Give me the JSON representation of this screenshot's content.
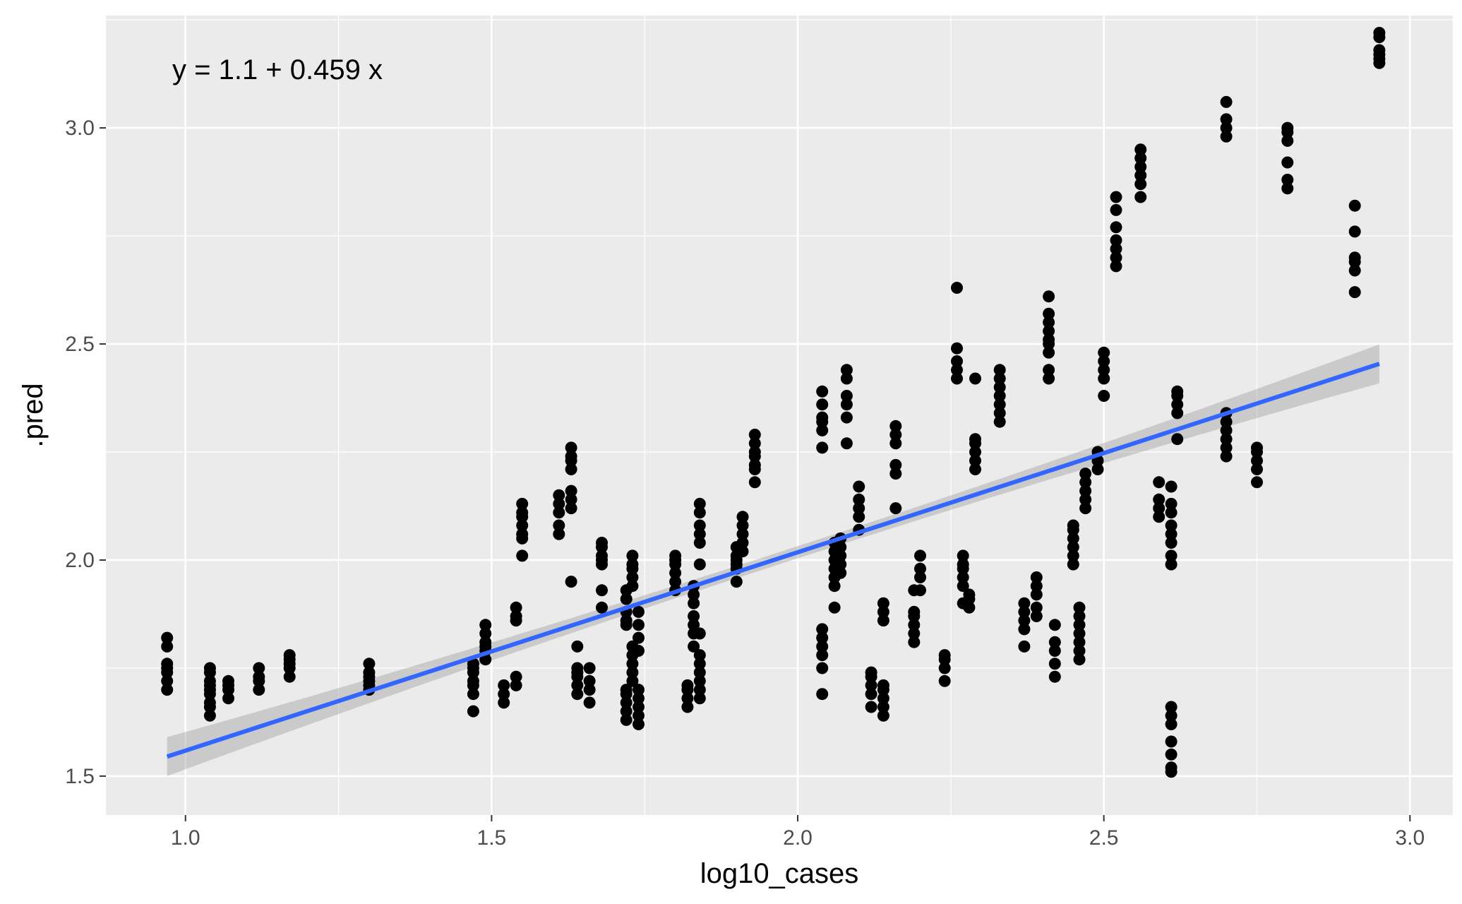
{
  "chart_data": {
    "type": "scatter",
    "title": "",
    "xlabel": "log10_cases",
    "ylabel": ".pred",
    "xlim": [
      0.87,
      3.07
    ],
    "ylim": [
      1.41,
      3.26
    ],
    "x_ticks": [
      1.0,
      1.5,
      2.0,
      2.5,
      3.0
    ],
    "x_tick_labels": [
      "1.0",
      "1.5",
      "2.0",
      "2.5",
      "3.0"
    ],
    "y_ticks": [
      1.5,
      2.0,
      2.5,
      3.0
    ],
    "y_tick_labels": [
      "1.5",
      "2.0",
      "2.5",
      "3.0"
    ],
    "grid": true,
    "annotation": "y = 1.1 + 0.459 x",
    "regression": {
      "intercept": 1.1,
      "slope": 0.459,
      "x_range": [
        0.97,
        2.95
      ],
      "se_band_halfwidth_ends": 0.045,
      "se_band_halfwidth_center": 0.014
    },
    "colors": {
      "panel": "#ebebeb",
      "grid_major": "#ffffff",
      "points": "#000000",
      "line": "#3366ff",
      "band": "#999999"
    },
    "groups": [
      {
        "x": 0.97,
        "y": [
          1.7,
          1.72,
          1.74,
          1.75,
          1.76,
          1.8,
          1.82
        ]
      },
      {
        "x": 1.04,
        "y": [
          1.64,
          1.66,
          1.67,
          1.69,
          1.7,
          1.71,
          1.72,
          1.74,
          1.75
        ]
      },
      {
        "x": 1.07,
        "y": [
          1.68,
          1.7,
          1.71,
          1.72
        ]
      },
      {
        "x": 1.12,
        "y": [
          1.7,
          1.72,
          1.73,
          1.75
        ]
      },
      {
        "x": 1.17,
        "y": [
          1.73,
          1.75,
          1.76,
          1.77,
          1.78
        ]
      },
      {
        "x": 1.3,
        "y": [
          1.7,
          1.71,
          1.72,
          1.73,
          1.74,
          1.76
        ]
      },
      {
        "x": 1.47,
        "y": [
          1.65,
          1.69,
          1.71,
          1.72,
          1.74,
          1.75,
          1.76
        ]
      },
      {
        "x": 1.49,
        "y": [
          1.77,
          1.79,
          1.8,
          1.81,
          1.83,
          1.85
        ]
      },
      {
        "x": 1.52,
        "y": [
          1.67,
          1.69,
          1.71
        ]
      },
      {
        "x": 1.54,
        "y": [
          1.71,
          1.73,
          1.86,
          1.87,
          1.89
        ]
      },
      {
        "x": 1.55,
        "y": [
          2.01,
          2.05,
          2.06,
          2.08,
          2.1,
          2.11,
          2.13
        ]
      },
      {
        "x": 1.61,
        "y": [
          2.06,
          2.08,
          2.11,
          2.13,
          2.15
        ]
      },
      {
        "x": 1.63,
        "y": [
          1.95,
          2.12,
          2.14,
          2.16,
          2.21,
          2.23,
          2.24,
          2.26
        ]
      },
      {
        "x": 1.64,
        "y": [
          1.69,
          1.71,
          1.73,
          1.74,
          1.75,
          1.8
        ]
      },
      {
        "x": 1.66,
        "y": [
          1.67,
          1.7,
          1.72,
          1.75
        ]
      },
      {
        "x": 1.68,
        "y": [
          1.89,
          1.93,
          1.99,
          2.0,
          2.01,
          2.03,
          2.04
        ]
      },
      {
        "x": 1.72,
        "y": [
          1.63,
          1.65,
          1.67,
          1.69,
          1.7,
          1.85,
          1.86,
          1.88,
          1.91,
          1.93
        ]
      },
      {
        "x": 1.73,
        "y": [
          1.72,
          1.74,
          1.76,
          1.78,
          1.8,
          1.94,
          1.96,
          1.98,
          1.99,
          2.01
        ]
      },
      {
        "x": 1.74,
        "y": [
          1.62,
          1.64,
          1.66,
          1.68,
          1.7,
          1.79,
          1.82,
          1.85,
          1.88
        ]
      },
      {
        "x": 1.8,
        "y": [
          1.93,
          1.95,
          1.97,
          1.99,
          2.0,
          2.01
        ]
      },
      {
        "x": 1.82,
        "y": [
          1.66,
          1.68,
          1.7,
          1.71
        ]
      },
      {
        "x": 1.83,
        "y": [
          1.8,
          1.83,
          1.85,
          1.87,
          1.9,
          1.92,
          1.94
        ]
      },
      {
        "x": 1.84,
        "y": [
          1.68,
          1.7,
          1.72,
          1.74,
          1.76,
          1.78,
          1.83,
          1.99,
          2.04,
          2.06,
          2.08,
          2.11,
          2.13
        ]
      },
      {
        "x": 1.9,
        "y": [
          1.95,
          1.98,
          1.99,
          2.0,
          2.01,
          2.03
        ]
      },
      {
        "x": 1.91,
        "y": [
          2.02,
          2.04,
          2.06,
          2.08,
          2.1
        ]
      },
      {
        "x": 1.93,
        "y": [
          2.18,
          2.21,
          2.22,
          2.24,
          2.25,
          2.27,
          2.29
        ]
      },
      {
        "x": 2.04,
        "y": [
          1.69,
          1.75,
          1.78,
          1.8,
          1.82,
          1.84,
          2.26,
          2.3,
          2.32,
          2.33,
          2.36,
          2.39
        ]
      },
      {
        "x": 2.06,
        "y": [
          1.89,
          1.94,
          1.96,
          1.98,
          2.0,
          2.02,
          2.04
        ]
      },
      {
        "x": 2.07,
        "y": [
          1.97,
          1.99,
          2.01,
          2.03,
          2.05
        ]
      },
      {
        "x": 2.08,
        "y": [
          2.27,
          2.33,
          2.36,
          2.38,
          2.42,
          2.44
        ]
      },
      {
        "x": 2.1,
        "y": [
          2.07,
          2.1,
          2.12,
          2.14,
          2.17
        ]
      },
      {
        "x": 2.12,
        "y": [
          1.66,
          1.69,
          1.71,
          1.73,
          1.74
        ]
      },
      {
        "x": 2.14,
        "y": [
          1.64,
          1.66,
          1.68,
          1.7,
          1.71,
          1.86,
          1.88,
          1.9
        ]
      },
      {
        "x": 2.16,
        "y": [
          2.12,
          2.2,
          2.22,
          2.27,
          2.29,
          2.31
        ]
      },
      {
        "x": 2.19,
        "y": [
          1.81,
          1.83,
          1.85,
          1.87,
          1.88,
          1.93
        ]
      },
      {
        "x": 2.2,
        "y": [
          1.93,
          1.96,
          1.98,
          2.01
        ]
      },
      {
        "x": 2.24,
        "y": [
          1.72,
          1.75,
          1.77,
          1.78
        ]
      },
      {
        "x": 2.26,
        "y": [
          2.42,
          2.44,
          2.46,
          2.49,
          2.63
        ]
      },
      {
        "x": 2.27,
        "y": [
          1.9,
          1.94,
          1.96,
          1.98,
          1.99,
          2.01
        ]
      },
      {
        "x": 2.28,
        "y": [
          1.89,
          1.91,
          1.92
        ]
      },
      {
        "x": 2.29,
        "y": [
          2.21,
          2.23,
          2.25,
          2.27,
          2.28,
          2.42
        ]
      },
      {
        "x": 2.33,
        "y": [
          2.32,
          2.34,
          2.36,
          2.38,
          2.4,
          2.42,
          2.44
        ]
      },
      {
        "x": 2.37,
        "y": [
          1.8,
          1.84,
          1.86,
          1.88,
          1.9
        ]
      },
      {
        "x": 2.39,
        "y": [
          1.87,
          1.89,
          1.92,
          1.94,
          1.96
        ]
      },
      {
        "x": 2.41,
        "y": [
          2.42,
          2.44,
          2.48,
          2.5,
          2.51,
          2.53,
          2.55,
          2.57,
          2.61
        ]
      },
      {
        "x": 2.42,
        "y": [
          1.73,
          1.76,
          1.79,
          1.81,
          1.85
        ]
      },
      {
        "x": 2.45,
        "y": [
          1.99,
          2.01,
          2.03,
          2.05,
          2.07,
          2.08
        ]
      },
      {
        "x": 2.46,
        "y": [
          1.77,
          1.79,
          1.81,
          1.83,
          1.85,
          1.87,
          1.89
        ]
      },
      {
        "x": 2.47,
        "y": [
          2.12,
          2.14,
          2.16,
          2.18,
          2.2
        ]
      },
      {
        "x": 2.49,
        "y": [
          2.21,
          2.23,
          2.25
        ]
      },
      {
        "x": 2.5,
        "y": [
          2.38,
          2.42,
          2.44,
          2.46,
          2.48
        ]
      },
      {
        "x": 2.52,
        "y": [
          2.68,
          2.7,
          2.72,
          2.74,
          2.77,
          2.81,
          2.84
        ]
      },
      {
        "x": 2.56,
        "y": [
          2.84,
          2.87,
          2.89,
          2.91,
          2.93,
          2.95
        ]
      },
      {
        "x": 2.59,
        "y": [
          2.1,
          2.12,
          2.14,
          2.18
        ]
      },
      {
        "x": 2.61,
        "y": [
          1.51,
          1.52,
          1.55,
          1.58,
          1.62,
          1.64,
          1.66,
          1.99,
          2.01,
          2.04,
          2.06,
          2.08,
          2.11,
          2.13,
          2.17
        ]
      },
      {
        "x": 2.62,
        "y": [
          2.28,
          2.34,
          2.36,
          2.38,
          2.39
        ]
      },
      {
        "x": 2.7,
        "y": [
          2.24,
          2.26,
          2.28,
          2.3,
          2.32,
          2.34,
          2.98,
          3.0,
          3.02,
          3.06
        ]
      },
      {
        "x": 2.75,
        "y": [
          2.18,
          2.21,
          2.23,
          2.25,
          2.26
        ]
      },
      {
        "x": 2.8,
        "y": [
          2.86,
          2.88,
          2.92,
          2.97,
          2.99,
          3.0
        ]
      },
      {
        "x": 2.91,
        "y": [
          2.62,
          2.67,
          2.69,
          2.7,
          2.76,
          2.82
        ]
      },
      {
        "x": 2.95,
        "y": [
          3.15,
          3.16,
          3.17,
          3.18,
          3.21,
          3.22
        ]
      }
    ]
  }
}
